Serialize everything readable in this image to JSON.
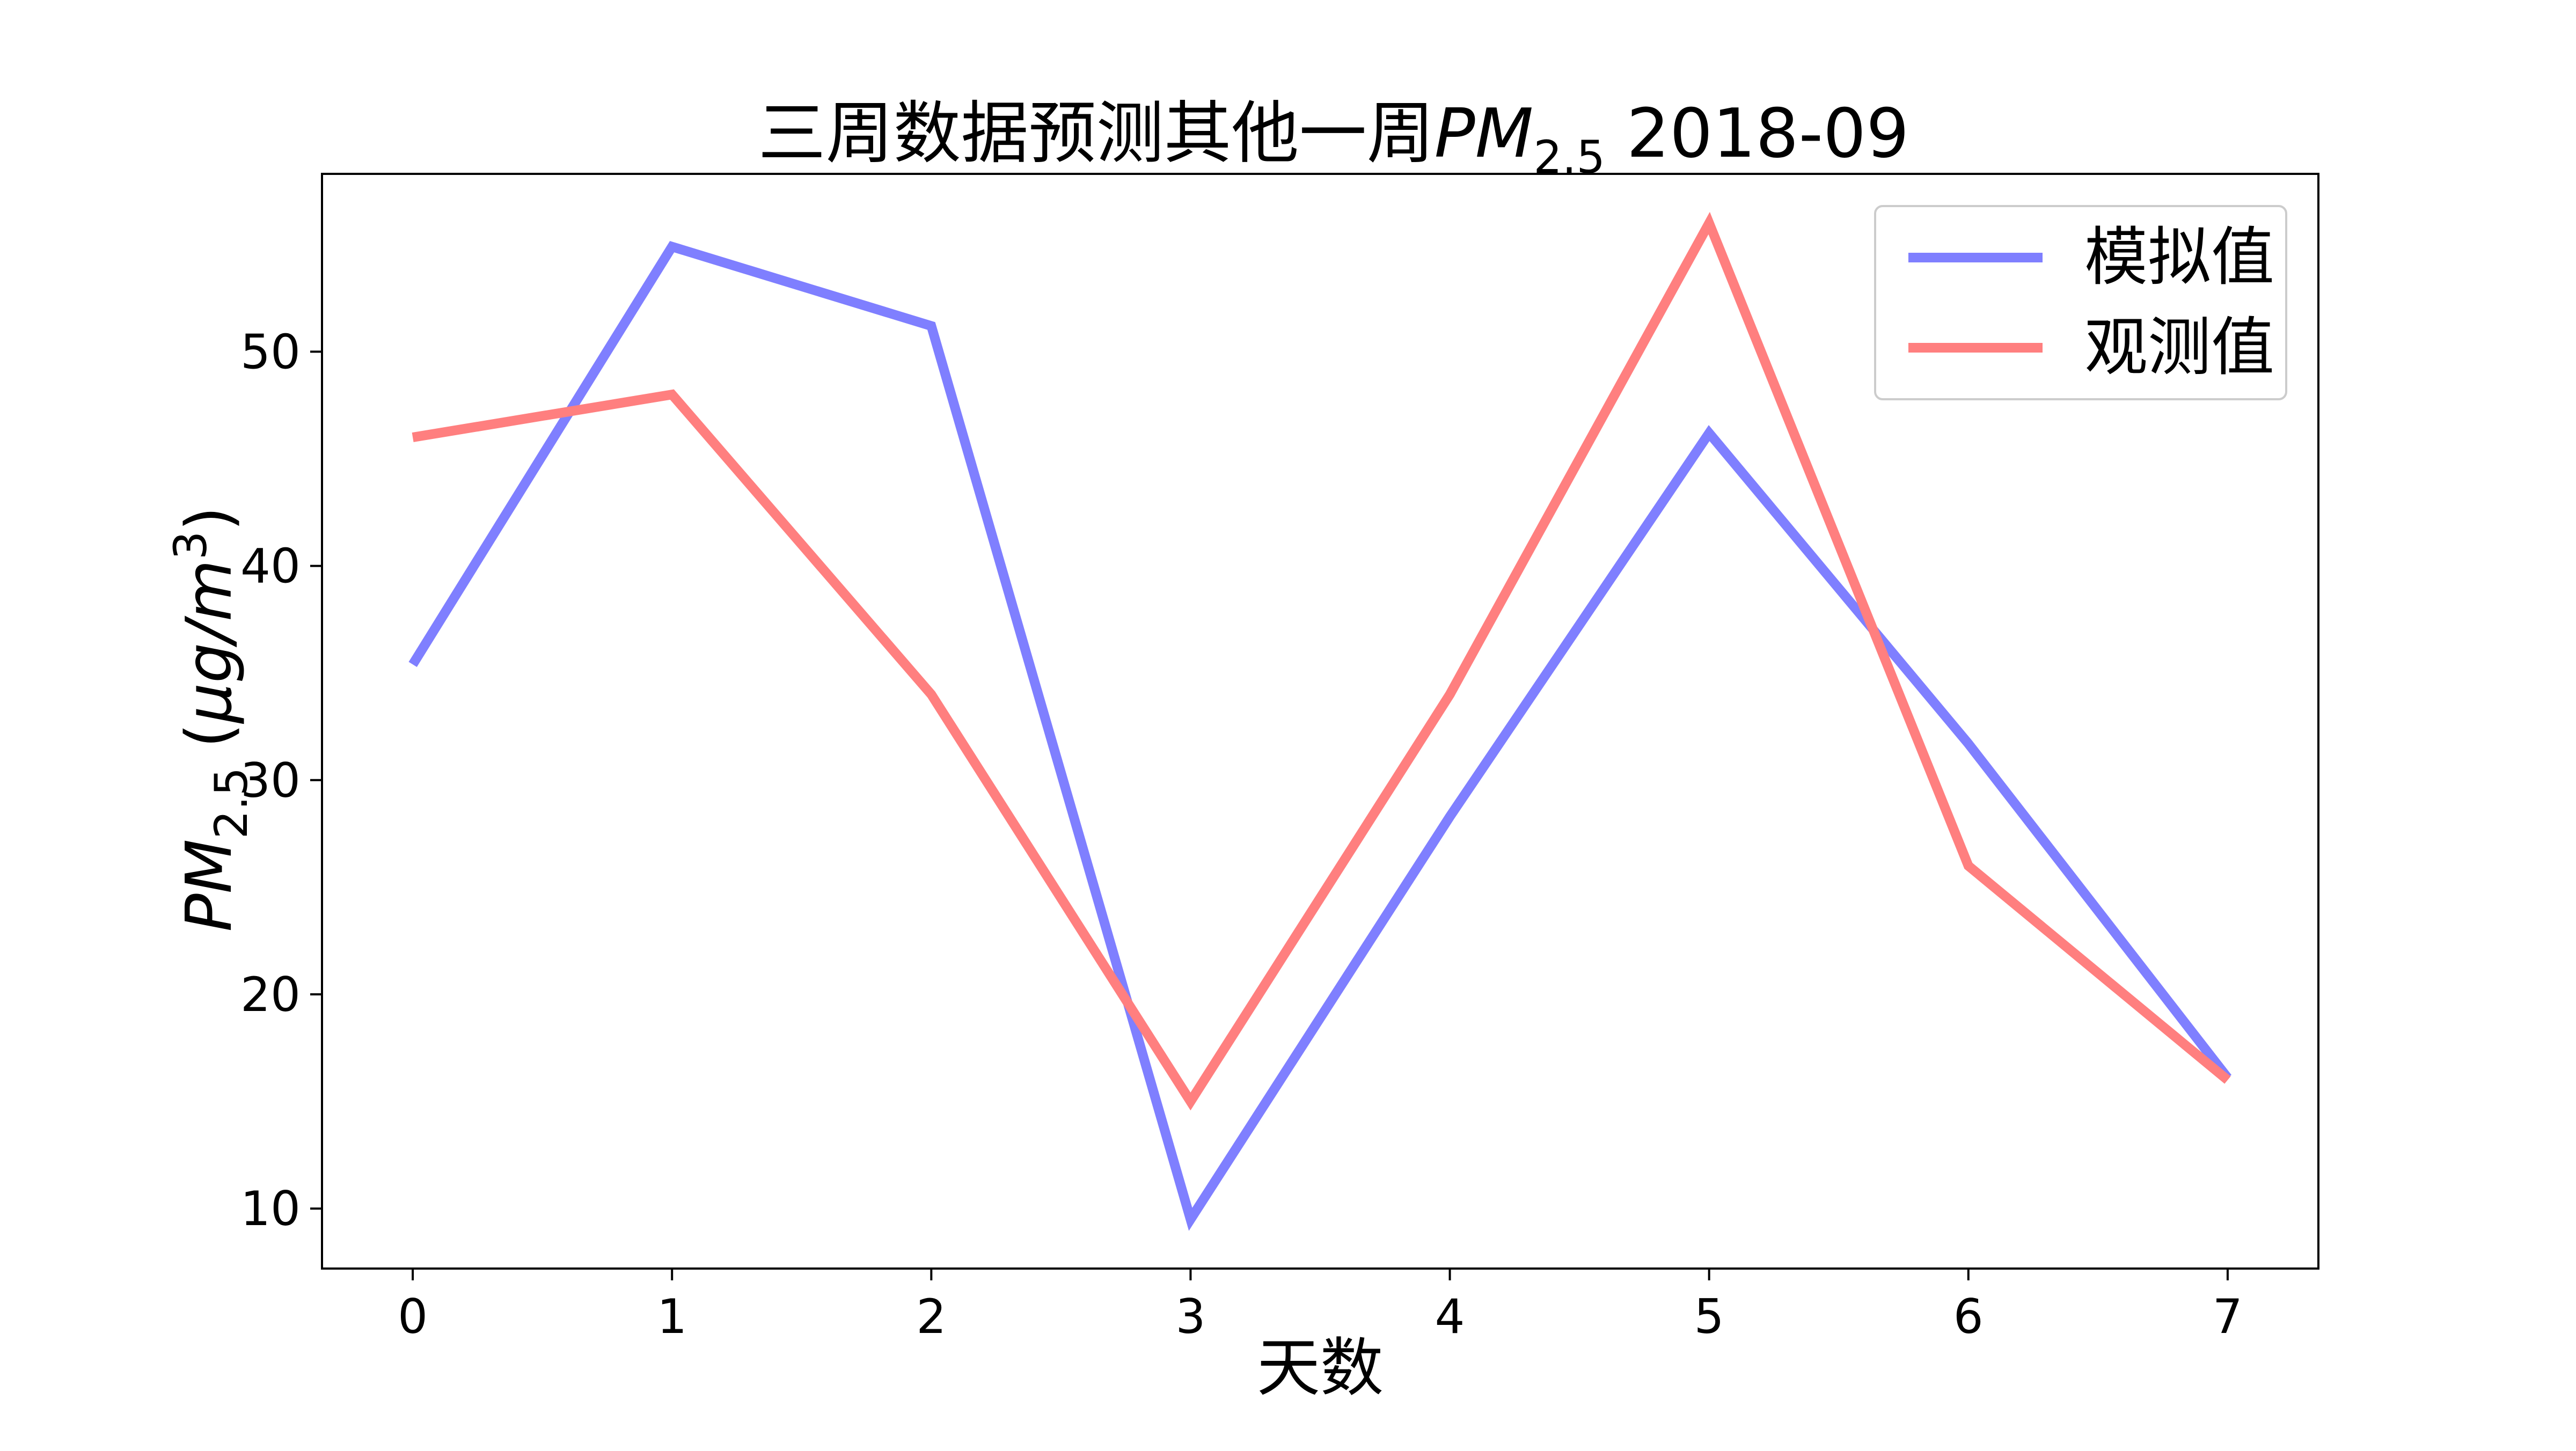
{
  "chart_data": {
    "type": "line",
    "title": {
      "prefix": "三周数据预测其他一周",
      "pm": "PM",
      "sub": "2.5",
      "suffix": "2018-09"
    },
    "xlabel": "天数",
    "ylabel": {
      "pm": "PM",
      "sub": "2.5",
      "unit_open": "(",
      "unit_mu": "μg/m",
      "unit_sup": "3",
      "unit_close": ")"
    },
    "x": [
      0,
      1,
      2,
      3,
      4,
      5,
      6,
      7
    ],
    "x_ticks": [
      "0",
      "1",
      "2",
      "3",
      "4",
      "5",
      "6",
      "7"
    ],
    "y_ticks": [
      10,
      20,
      30,
      40,
      50
    ],
    "y_tick_labels": [
      "10",
      "20",
      "30",
      "40",
      "50"
    ],
    "xlim": [
      -0.35,
      7.35
    ],
    "ylim": [
      7.2,
      58.3
    ],
    "grid": false,
    "legend_position": "top-right",
    "series": [
      {
        "name": "模拟值",
        "color": "#7f7fff",
        "values": [
          35.4,
          54.9,
          51.2,
          9.5,
          28.3,
          46.2,
          31.7,
          16.1
        ]
      },
      {
        "name": "观测值",
        "color": "#ff7f7f",
        "values": [
          46.0,
          48.0,
          34.0,
          15.0,
          34.0,
          56.0,
          26.0,
          16.0
        ]
      }
    ]
  }
}
